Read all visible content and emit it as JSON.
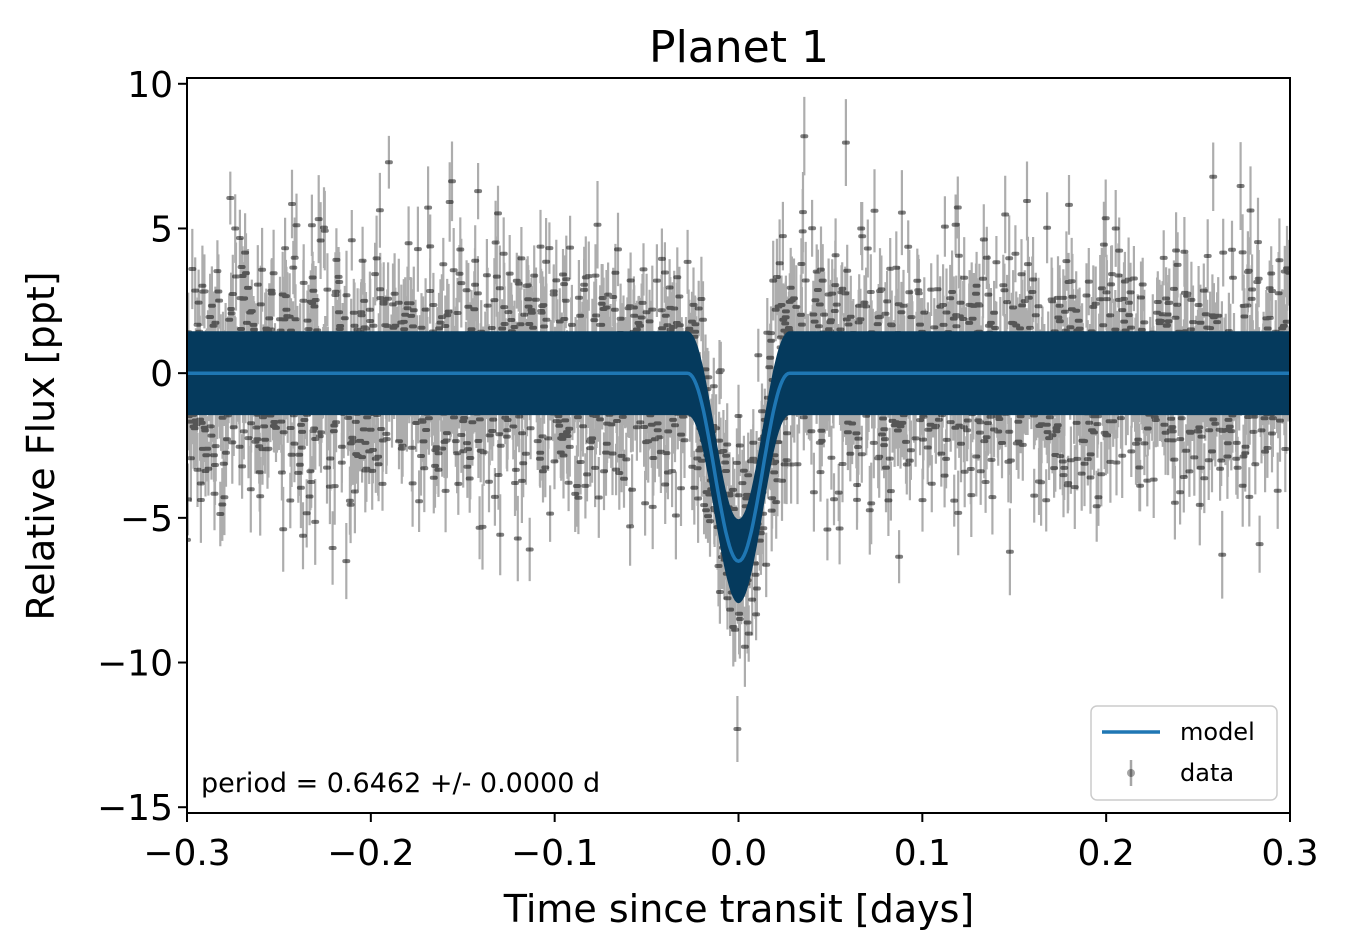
{
  "chart_data": {
    "type": "scatter",
    "title": "Planet 1",
    "xlabel": "Time since transit [days]",
    "ylabel": "Relative Flux [ppt]",
    "xlim": [
      -0.3,
      0.3
    ],
    "ylim": [
      -15.2,
      10.2
    ],
    "xticks": [
      -0.3,
      -0.2,
      -0.1,
      0.0,
      0.1,
      0.2,
      0.3
    ],
    "xtick_labels": [
      "−0.3",
      "−0.2",
      "−0.1",
      "0.0",
      "0.1",
      "0.2",
      "0.3"
    ],
    "yticks": [
      -15,
      -10,
      -5,
      0,
      5,
      10
    ],
    "ytick_labels": [
      "−15",
      "−10",
      "−5",
      "0",
      "5",
      "10"
    ],
    "grid": false,
    "legend_position": "lower-right",
    "annotation": "period = 0.6462 +/- 0.0000 d",
    "series": [
      {
        "name": "model",
        "kind": "line",
        "color": "#1f77b4",
        "band_color": "#053a5d",
        "band_halfwidth": 1.45,
        "depth": 6.5,
        "transit_halfwidth": 0.028,
        "samples_x": [
          -0.3,
          -0.028,
          -0.02,
          -0.01,
          0.0,
          0.01,
          0.02,
          0.028,
          0.3
        ],
        "samples_y": [
          0,
          0,
          -1.7,
          -5.0,
          -6.5,
          -5.0,
          -1.7,
          0,
          0
        ]
      },
      {
        "name": "data",
        "kind": "errorbar",
        "color": "#000000",
        "point_opacity": 0.35,
        "x_range": [
          -0.3,
          0.3
        ],
        "scatter": 2.9,
        "typical_error": 1.1
      }
    ]
  }
}
